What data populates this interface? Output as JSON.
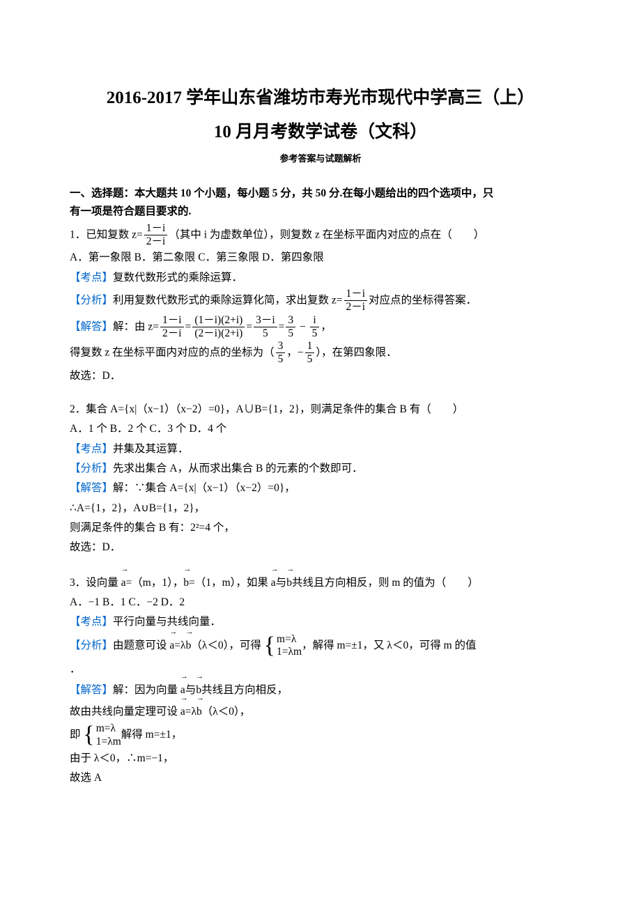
{
  "title_line1": "2016-2017 学年山东省潍坊市寿光市现代中学高三（上）",
  "title_line2": "10 月月考数学试卷（文科）",
  "subtitle": "参考答案与试题解析",
  "section1_heading_a": "一、选择题：本大题共 10 个小题，每小题 5 分，共 50 分.在每小题给出的四个选项中，只",
  "section1_heading_b": "有一项是符合题目要求的.",
  "q1": {
    "prefix": "1．已知复数 ",
    "z_eq": "z=",
    "frac_num": "1－i",
    "frac_den": "2－i",
    "suffix": "（其中 i 为虚数单位），则复数 z 在坐标平面内对应的点在（　　）",
    "options": "A．第一象限  B．第二象限  C．第三象限  D．第四象限",
    "kd_label": "【考点】",
    "kd_text": "复数代数形式的乘除运算．",
    "fx_label": "【分析】",
    "fx_text_a": "利用复数代数形式的乘除运算化简，求出复数 ",
    "fx_z": "z=",
    "fx_num": "1－i",
    "fx_den": "2－i",
    "fx_text_b": "对应点的坐标得答案．",
    "jd_label": "【解答】",
    "jd_pre": "解：由 ",
    "jd_z": "z=",
    "lhs_num": "1－i",
    "lhs_den": "2－i",
    "eq1": "=",
    "mid_num": "(1－i)(2+i)",
    "mid_den": "(2－i)(2+i)",
    "eq2": "=",
    "r1_num": "3－i",
    "r1_den": "5",
    "eq3": "=",
    "r2_num": "3",
    "r2_den": "5",
    "minus": " − ",
    "r3_num": "i",
    "r3_den": "5",
    "comma": "，",
    "coord_pre": "得复数 z 在坐标平面内对应的点的坐标为（",
    "cx_num": "3",
    "cx_den": "5",
    "coord_mid": "，−",
    "cy_num": "1",
    "cy_den": "5",
    "coord_post": "），在第四象限．",
    "ans": "故选：D．"
  },
  "q2": {
    "stem": "2．集合 A={x|（x−1）（x−2）=0}，A∪B={1，2}，则满足条件的集合 B 有（　　）",
    "options": "A．1 个  B．2 个  C．3 个  D．4 个",
    "kd_label": "【考点】",
    "kd_text": "并集及其运算．",
    "fx_label": "【分析】",
    "fx_text": "先求出集合 A，从而求出集合 B 的元素的个数即可．",
    "jd_label": "【解答】",
    "jd_l1": "解：∵集合 A={x|（x−1）（x−2）=0}，",
    "jd_l2": "∴A={1，2}，A∪B={1，2}，",
    "jd_l3": "则满足条件的集合 B 有：2²=4 个，",
    "ans": "故选：D．"
  },
  "q3": {
    "pre": "3．设向量 ",
    "a": "a",
    "mid1": "=（m，1），",
    "b": "b",
    "mid2": "=（1，m），如果 ",
    "mid3": "与",
    "post": "共线且方向相反，则 m 的值为（　　）",
    "options": "A．−1    B．1       C．−2    D．2",
    "kd_label": "【考点】",
    "kd_text": "平行向量与共线向量．",
    "fx_label": "【分析】",
    "fx_pre": "由题意可设 ",
    "fx_eq": "=λ",
    "fx_lambda": "（λ＜0），可得",
    "sys_r1": "m=λ",
    "sys_r2": "1=λm",
    "fx_post": "，解得 m=±1，又 λ＜0，可得 m 的值",
    "fx_dot": "．",
    "jd_label": "【解答】",
    "jd_l1_pre": "解：因为向量 ",
    "jd_l1_mid": "与",
    "jd_l1_post": "共线且方向相反，",
    "jd_l2_pre": "故由共线向量定理可设 ",
    "jd_l2_eq": "=λ",
    "jd_l2_post": "（λ＜0），",
    "jd_l3_pre": "即",
    "jd_l3_post": "解得 m=±1，",
    "jd_l4": "由于 λ＜0，∴m=−1，",
    "ans": "故选 A"
  }
}
